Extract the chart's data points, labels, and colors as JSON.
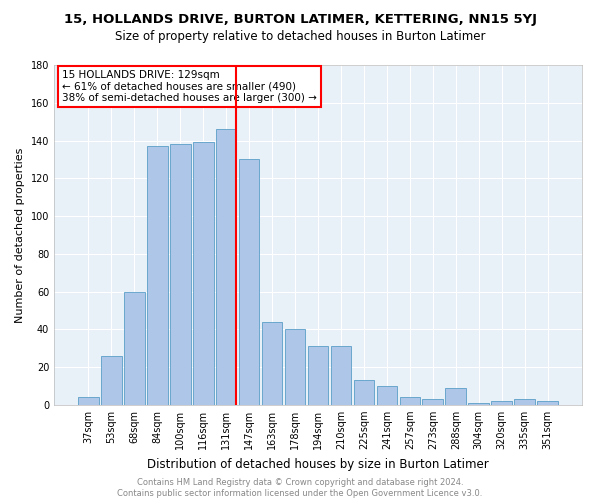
{
  "title": "15, HOLLANDS DRIVE, BURTON LATIMER, KETTERING, NN15 5YJ",
  "subtitle": "Size of property relative to detached houses in Burton Latimer",
  "xlabel": "Distribution of detached houses by size in Burton Latimer",
  "ylabel": "Number of detached properties",
  "categories": [
    "37sqm",
    "53sqm",
    "68sqm",
    "84sqm",
    "100sqm",
    "116sqm",
    "131sqm",
    "147sqm",
    "163sqm",
    "178sqm",
    "194sqm",
    "210sqm",
    "225sqm",
    "241sqm",
    "257sqm",
    "273sqm",
    "288sqm",
    "304sqm",
    "320sqm",
    "335sqm",
    "351sqm"
  ],
  "values": [
    4,
    26,
    60,
    137,
    138,
    139,
    146,
    130,
    44,
    40,
    31,
    31,
    13,
    10,
    4,
    3,
    9,
    1,
    2,
    3,
    2
  ],
  "bar_color": "#aec6e8",
  "bar_edge_color": "#5a9fc8",
  "vline_color": "red",
  "vline_x_index": 6,
  "annotation_text": "15 HOLLANDS DRIVE: 129sqm\n← 61% of detached houses are smaller (490)\n38% of semi-detached houses are larger (300) →",
  "annotation_box_color": "white",
  "annotation_box_edge": "red",
  "ylim": [
    0,
    180
  ],
  "yticks": [
    0,
    20,
    40,
    60,
    80,
    100,
    120,
    140,
    160,
    180
  ],
  "background_color": "#e8f0f8",
  "grid_color": "white",
  "footer_line1": "Contains HM Land Registry data © Crown copyright and database right 2024.",
  "footer_line2": "Contains public sector information licensed under the Open Government Licence v3.0.",
  "title_fontsize": 9.5,
  "subtitle_fontsize": 8.5,
  "xlabel_fontsize": 8.5,
  "ylabel_fontsize": 8,
  "tick_fontsize": 7,
  "annotation_fontsize": 7.5
}
